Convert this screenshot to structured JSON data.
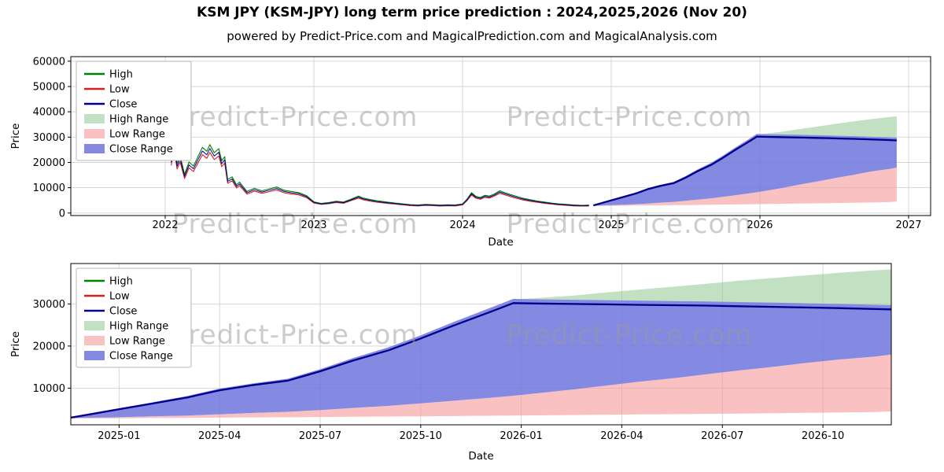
{
  "page": {
    "title": "KSM JPY (KSM-JPY) long term price prediction : 2024,2025,2026 (Nov 20)",
    "subtitle": "powered by Predict-Price.com and MagicalPrediction.com and MagicalAnalysis.com"
  },
  "watermark": "Predict-Price.com",
  "legend": [
    {
      "label": "High",
      "type": "line",
      "color": "#008000"
    },
    {
      "label": "Low",
      "type": "line",
      "color": "#d62020"
    },
    {
      "label": "Close",
      "type": "line",
      "color": "#00008b"
    },
    {
      "label": "High Range",
      "type": "patch",
      "color": "#90c990",
      "opacity": 0.55
    },
    {
      "label": "Low Range",
      "type": "patch",
      "color": "#f59898",
      "opacity": 0.6
    },
    {
      "label": "Close Range",
      "type": "patch",
      "color": "#6f74dd",
      "opacity": 0.85
    }
  ],
  "chart_data": [
    {
      "type": "line",
      "name": "long-term-history-and-forecast",
      "xlabel": "Date",
      "ylabel": "Price",
      "xlim": [
        2021.365,
        2027.148
      ],
      "ylim": [
        -1000,
        61800
      ],
      "grid": true,
      "legend_position": "upper left",
      "xticks": [
        {
          "v": 2022,
          "label": "2022"
        },
        {
          "v": 2023,
          "label": "2023"
        },
        {
          "v": 2024,
          "label": "2024"
        },
        {
          "v": 2025,
          "label": "2025"
        },
        {
          "v": 2026,
          "label": "2026"
        },
        {
          "v": 2027,
          "label": "2027"
        }
      ],
      "yticks": [
        {
          "v": 0,
          "label": "0"
        },
        {
          "v": 10000,
          "label": "10000"
        },
        {
          "v": 20000,
          "label": "20000"
        },
        {
          "v": 30000,
          "label": "30000"
        },
        {
          "v": 40000,
          "label": "40000"
        },
        {
          "v": 50000,
          "label": "50000"
        },
        {
          "v": 60000,
          "label": "60000"
        }
      ],
      "history": {
        "x": [
          2022.04,
          2022.06,
          2022.08,
          2022.1,
          2022.13,
          2022.16,
          2022.19,
          2022.22,
          2022.25,
          2022.28,
          2022.3,
          2022.33,
          2022.36,
          2022.38,
          2022.4,
          2022.42,
          2022.45,
          2022.48,
          2022.5,
          2022.55,
          2022.6,
          2022.65,
          2022.7,
          2022.75,
          2022.8,
          2022.85,
          2022.9,
          2022.95,
          2023.0,
          2023.05,
          2023.1,
          2023.15,
          2023.2,
          2023.25,
          2023.3,
          2023.33,
          2023.38,
          2023.42,
          2023.46,
          2023.5,
          2023.55,
          2023.6,
          2023.65,
          2023.7,
          2023.75,
          2023.8,
          2023.85,
          2023.9,
          2023.95,
          2024.0,
          2024.03,
          2024.06,
          2024.09,
          2024.12,
          2024.15,
          2024.18,
          2024.21,
          2024.25,
          2024.28,
          2024.31,
          2024.35,
          2024.4,
          2024.45,
          2024.5,
          2024.55,
          2024.6,
          2024.65,
          2024.7,
          2024.75,
          2024.8,
          2024.85
        ],
        "high": [
          21200,
          28100,
          19600,
          22800,
          15350,
          20150,
          18550,
          22250,
          25950,
          24400,
          27050,
          23850,
          25450,
          20650,
          22250,
          13250,
          14300,
          11150,
          12200,
          8500,
          9750,
          8800,
          9550,
          10300,
          9000,
          8500,
          8050,
          6900,
          4450,
          3800,
          4150,
          4650,
          4350,
          5500,
          6700,
          5950,
          5300,
          4900,
          4550,
          4250,
          3900,
          3600,
          3300,
          3200,
          3400,
          3300,
          3150,
          3250,
          3200,
          3600,
          5500,
          8050,
          6550,
          6150,
          7000,
          6700,
          7400,
          8800,
          8150,
          7550,
          6800,
          5950,
          5300,
          4750,
          4350,
          3900,
          3600,
          3400,
          3200,
          3050,
          3150
        ],
        "low": [
          18800,
          24900,
          17400,
          20200,
          13650,
          17850,
          16450,
          19750,
          23050,
          21600,
          23950,
          21150,
          22550,
          18350,
          19750,
          11750,
          12700,
          9850,
          10800,
          7500,
          8650,
          7800,
          8450,
          9100,
          8000,
          7500,
          7150,
          6100,
          3950,
          3400,
          3650,
          4150,
          3850,
          4900,
          5900,
          5250,
          4700,
          4300,
          4050,
          3750,
          3500,
          3200,
          2900,
          2800,
          3000,
          2900,
          2750,
          2850,
          2800,
          3200,
          4900,
          7150,
          5850,
          5450,
          6200,
          5900,
          6600,
          7800,
          7250,
          6650,
          6000,
          5250,
          4700,
          4250,
          3850,
          3500,
          3200,
          3000,
          2800,
          2750,
          2750
        ],
        "close": [
          20000,
          26500,
          18500,
          21500,
          14500,
          19000,
          17500,
          21000,
          24500,
          23000,
          25500,
          22500,
          24000,
          19500,
          21000,
          12500,
          13500,
          10500,
          11500,
          8000,
          9200,
          8300,
          9000,
          9700,
          8500,
          8000,
          7600,
          6500,
          4200,
          3600,
          3900,
          4400,
          4100,
          5200,
          6300,
          5600,
          5000,
          4600,
          4300,
          4000,
          3700,
          3400,
          3100,
          3000,
          3200,
          3100,
          2950,
          3050,
          3000,
          3400,
          5200,
          7600,
          6200,
          5800,
          6600,
          6300,
          7000,
          8300,
          7700,
          7100,
          6400,
          5600,
          5000,
          4500,
          4100,
          3700,
          3400,
          3200,
          3000,
          2900,
          2950
        ]
      },
      "forecast": {
        "x": [
          2024.88,
          2025.0,
          2025.08,
          2025.17,
          2025.25,
          2025.33,
          2025.42,
          2025.5,
          2025.58,
          2025.67,
          2025.75,
          2025.83,
          2025.92,
          2025.98,
          2026.04,
          2026.13,
          2026.21,
          2026.29,
          2026.38,
          2026.46,
          2026.54,
          2026.63,
          2026.71,
          2026.79,
          2026.88,
          2026.92
        ],
        "close": [
          3000,
          5000,
          6300,
          7800,
          9500,
          10700,
          11800,
          14000,
          16500,
          19000,
          21800,
          24800,
          28000,
          30200,
          30100,
          30000,
          29900,
          29800,
          29700,
          29600,
          29450,
          29300,
          29150,
          29000,
          28800,
          28700
        ],
        "close_upper": [
          3100,
          5150,
          6500,
          8050,
          9800,
          11000,
          12150,
          14400,
          17000,
          19600,
          22450,
          25550,
          28850,
          31100,
          31000,
          30900,
          30800,
          30700,
          30600,
          30500,
          30350,
          30200,
          30050,
          29900,
          29700,
          29600
        ],
        "high_top": [
          3100,
          5200,
          6500,
          8050,
          9800,
          11000,
          12200,
          14400,
          17000,
          19600,
          22450,
          25550,
          28850,
          31100,
          31400,
          32000,
          32700,
          33400,
          34100,
          34800,
          35500,
          36200,
          36800,
          37400,
          38000,
          38200
        ],
        "low_top": [
          2900,
          3100,
          3300,
          3500,
          3800,
          4100,
          4400,
          4800,
          5300,
          5800,
          6400,
          7000,
          7700,
          8200,
          8800,
          9700,
          10600,
          11500,
          12400,
          13300,
          14200,
          15100,
          16000,
          16800,
          17500,
          18000
        ],
        "low_bottom": [
          2800,
          2850,
          2900,
          2950,
          3000,
          3050,
          3100,
          3150,
          3200,
          3260,
          3320,
          3380,
          3450,
          3500,
          3550,
          3620,
          3690,
          3760,
          3830,
          3900,
          3980,
          4060,
          4140,
          4220,
          4350,
          4500
        ]
      }
    },
    {
      "type": "line",
      "name": "forecast-detail",
      "xlabel": "Date",
      "ylabel": "Price",
      "xlim": [
        2024.88,
        2026.92
      ],
      "ylim": [
        1300,
        39600
      ],
      "grid": true,
      "legend_position": "upper left",
      "xticks": [
        {
          "v": 2025.0,
          "label": "2025-01"
        },
        {
          "v": 2025.25,
          "label": "2025-04"
        },
        {
          "v": 2025.5,
          "label": "2025-07"
        },
        {
          "v": 2025.75,
          "label": "2025-10"
        },
        {
          "v": 2026.0,
          "label": "2026-01"
        },
        {
          "v": 2026.25,
          "label": "2026-04"
        },
        {
          "v": 2026.5,
          "label": "2026-07"
        },
        {
          "v": 2026.75,
          "label": "2026-10"
        }
      ],
      "yticks": [
        {
          "v": 10000,
          "label": "10000"
        },
        {
          "v": 20000,
          "label": "20000"
        },
        {
          "v": 30000,
          "label": "30000"
        }
      ],
      "forecast": {
        "x": [
          2024.88,
          2025.0,
          2025.08,
          2025.17,
          2025.25,
          2025.33,
          2025.42,
          2025.5,
          2025.58,
          2025.67,
          2025.75,
          2025.83,
          2025.92,
          2025.98,
          2026.04,
          2026.13,
          2026.21,
          2026.29,
          2026.38,
          2026.46,
          2026.54,
          2026.63,
          2026.71,
          2026.79,
          2026.88,
          2026.92
        ],
        "close": [
          3000,
          5000,
          6300,
          7800,
          9500,
          10700,
          11800,
          14000,
          16500,
          19000,
          21800,
          24800,
          28000,
          30200,
          30100,
          30000,
          29900,
          29800,
          29700,
          29600,
          29450,
          29300,
          29150,
          29000,
          28800,
          28700
        ],
        "close_upper": [
          3100,
          5150,
          6500,
          8050,
          9800,
          11000,
          12150,
          14400,
          17000,
          19600,
          22450,
          25550,
          28850,
          31100,
          31000,
          30900,
          30800,
          30700,
          30600,
          30500,
          30350,
          30200,
          30050,
          29900,
          29700,
          29600
        ],
        "high_top": [
          3100,
          5200,
          6500,
          8050,
          9800,
          11000,
          12200,
          14400,
          17000,
          19600,
          22450,
          25550,
          28850,
          31100,
          31400,
          32000,
          32700,
          33400,
          34100,
          34800,
          35500,
          36200,
          36800,
          37400,
          38000,
          38200
        ],
        "low_top": [
          2900,
          3100,
          3300,
          3500,
          3800,
          4100,
          4400,
          4800,
          5300,
          5800,
          6400,
          7000,
          7700,
          8200,
          8800,
          9700,
          10600,
          11500,
          12400,
          13300,
          14200,
          15100,
          16000,
          16800,
          17500,
          18000
        ],
        "low_bottom": [
          2800,
          2850,
          2900,
          2950,
          3000,
          3050,
          3100,
          3150,
          3200,
          3260,
          3320,
          3380,
          3450,
          3500,
          3550,
          3620,
          3690,
          3760,
          3830,
          3900,
          3980,
          4060,
          4140,
          4220,
          4350,
          4500
        ]
      }
    }
  ]
}
